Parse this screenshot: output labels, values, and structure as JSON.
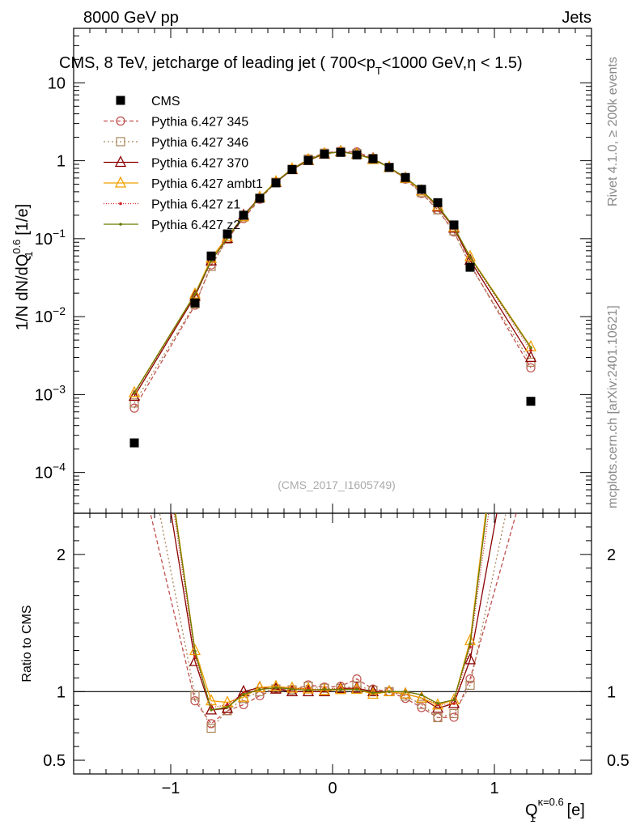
{
  "header": {
    "left": "8000 GeV pp",
    "right": "Jets",
    "title": "CMS, 8 TeV, jetcharge of leading jet ( 700<p",
    "title_sub": "T",
    "title_tail": "<1000 GeV,η < 1.5)"
  },
  "side": {
    "rivet": "Rivet 4.1.0, ≥ 200k events",
    "mcplots": "mcplots.cern.ch [arXiv:2401.10621]"
  },
  "watermark": "(CMS_2017_I1605749)",
  "axes": {
    "ylabel_main": "1/N dN/dQ",
    "ylabel_main_sup": "0.6",
    "ylabel_main_sub": "1",
    "ylabel_main_unit": " [1/e]",
    "ylabel_ratio": "Ratio to CMS",
    "xlabel": "Q",
    "xlabel_sup": "κ=0.6",
    "xlabel_sub": "1",
    "xlabel_unit": " [e]",
    "xticks": [
      "−1",
      "0",
      "1"
    ],
    "ymain_ticks": [
      {
        "base": "10",
        "exp": "",
        "v": 10
      },
      {
        "base": "1",
        "exp": "",
        "v": 1
      },
      {
        "base": "10",
        "exp": "−1",
        "v": 0.1
      },
      {
        "base": "10",
        "exp": "−2",
        "v": 0.01
      },
      {
        "base": "10",
        "exp": "−3",
        "v": 0.001
      },
      {
        "base": "10",
        "exp": "−4",
        "v": 0.0001
      }
    ],
    "yratio_ticks": [
      "2",
      "1",
      "0.5"
    ]
  },
  "chart_data": {
    "type": "line",
    "title": "CMS, 8 TeV, jetcharge of leading jet ( 700<pT<1000 GeV,η < 1.5)",
    "xlabel": "Q1^κ=0.6 [e]",
    "ylabel": "1/N dN/dQ1^0.6 [1/e]",
    "xlim": [
      -1.6,
      1.6
    ],
    "ylim_main": [
      3e-05,
      50
    ],
    "ylim_ratio": [
      0.4,
      2.3
    ],
    "yscale": "log",
    "x": [
      -1.225,
      -0.85,
      -0.75,
      -0.65,
      -0.55,
      -0.45,
      -0.35,
      -0.25,
      -0.15,
      -0.05,
      0.05,
      0.15,
      0.25,
      0.35,
      0.45,
      0.55,
      0.65,
      0.75,
      0.85,
      1.225
    ],
    "cms": [
      0.00024,
      0.015,
      0.06,
      0.115,
      0.2,
      0.33,
      0.52,
      0.77,
      1.01,
      1.22,
      1.28,
      1.19,
      1.06,
      0.82,
      0.61,
      0.43,
      0.29,
      0.15,
      0.043,
      0.00082
    ],
    "series": [
      {
        "name": "Pythia 6.427 345",
        "color": "#c0504d",
        "dash": "5,3",
        "marker": "circle",
        "values": [
          0.00067,
          0.014,
          0.046,
          0.099,
          0.181,
          0.32,
          0.532,
          0.778,
          1.06,
          1.26,
          1.33,
          1.3,
          1.08,
          0.82,
          0.58,
          0.38,
          0.235,
          0.122,
          0.047,
          0.0022
        ]
      },
      {
        "name": "Pythia 6.427 346",
        "color": "#a98458",
        "dash": "2,3",
        "marker": "square",
        "values": [
          0.00078,
          0.0146,
          0.044,
          0.099,
          0.19,
          0.33,
          0.53,
          0.78,
          1.05,
          1.25,
          1.31,
          1.24,
          1.07,
          0.82,
          0.59,
          0.39,
          0.235,
          0.126,
          0.045,
          0.0026
        ]
      },
      {
        "name": "Pythia 6.427 370",
        "color": "#8b0000",
        "dash": "",
        "marker": "triangle",
        "values": [
          0.00095,
          0.0183,
          0.052,
          0.101,
          0.2,
          0.34,
          0.53,
          0.77,
          1.01,
          1.22,
          1.31,
          1.22,
          1.06,
          0.82,
          0.6,
          0.41,
          0.255,
          0.137,
          0.053,
          0.003
        ]
      },
      {
        "name": "Pythia 6.427 ambt1",
        "color": "#f0a000",
        "dash": "",
        "marker": "triangle",
        "values": [
          0.00106,
          0.0195,
          0.056,
          0.106,
          0.192,
          0.34,
          0.54,
          0.79,
          1.03,
          1.23,
          1.3,
          1.21,
          1.04,
          0.82,
          0.6,
          0.41,
          0.262,
          0.141,
          0.059,
          0.0041
        ]
      },
      {
        "name": "Pythia 6.427 z1",
        "color": "#d02020",
        "dash": "1,2",
        "marker": "dot",
        "values": [
          0.00103,
          0.0188,
          0.053,
          0.104,
          0.198,
          0.335,
          0.535,
          0.79,
          1.03,
          1.24,
          1.31,
          1.22,
          1.05,
          0.82,
          0.61,
          0.42,
          0.262,
          0.137,
          0.057,
          0.0037
        ]
      },
      {
        "name": "Pythia 6.427 z2",
        "color": "#6b7a00",
        "dash": "",
        "marker": "dot",
        "values": [
          0.00105,
          0.0194,
          0.052,
          0.102,
          0.196,
          0.335,
          0.535,
          0.785,
          1.02,
          1.24,
          1.3,
          1.21,
          1.05,
          0.82,
          0.61,
          0.42,
          0.265,
          0.141,
          0.058,
          0.004
        ]
      }
    ]
  }
}
